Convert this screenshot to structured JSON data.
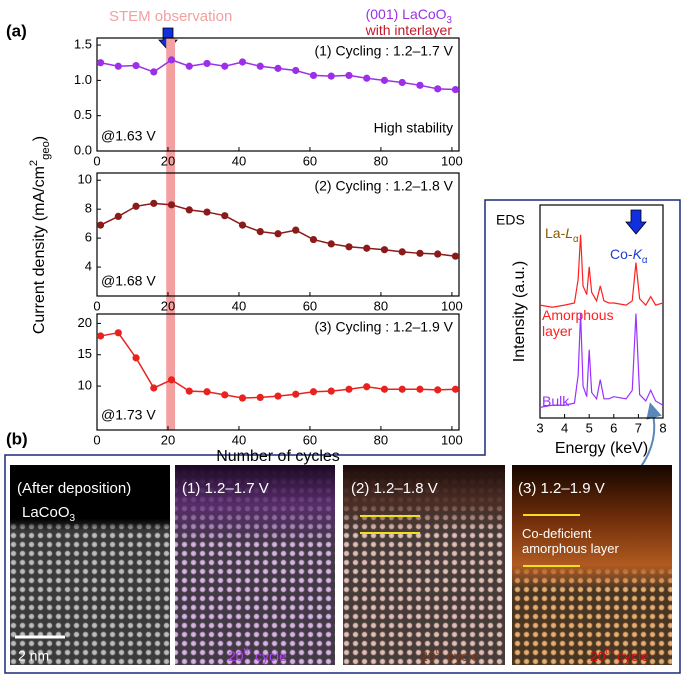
{
  "figure_labels": [
    "(a)",
    "(b)"
  ],
  "chart_data": [
    {
      "type": "line",
      "title": "(1) Cycling : 1.2–1.7 V",
      "note": "@1.63 V",
      "remark": "High stability",
      "annotation": "STEM observation",
      "highlight": [
        19.5,
        22
      ],
      "highlight_color": "#f4a0a0",
      "legend": [
        {
          "parts": [
            {
              "t": "(001) LaCoO"
            },
            {
              "t": "3",
              "pos": "sub"
            }
          ],
          "color": "#9b30e8"
        },
        {
          "parts": [
            {
              "t": "with interlayer"
            }
          ],
          "color": "#c0182a"
        }
      ],
      "y_label": [
        {
          "t": "Current density (mA/cm"
        },
        {
          "t": "2",
          "pos": "sup"
        },
        {
          "t": "geo",
          "pos": "sub"
        },
        {
          "t": ")"
        }
      ],
      "x": [
        1,
        6,
        11,
        16,
        21,
        26,
        31,
        36,
        41,
        46,
        51,
        56,
        61,
        66,
        71,
        76,
        81,
        86,
        91,
        96,
        101
      ],
      "series": [
        {
          "color": "#9b30e8",
          "values": [
            1.25,
            1.2,
            1.21,
            1.12,
            1.29,
            1.2,
            1.24,
            1.2,
            1.26,
            1.2,
            1.17,
            1.14,
            1.07,
            1.06,
            1.07,
            1.03,
            1.0,
            0.97,
            0.93,
            0.88,
            0.87
          ]
        }
      ],
      "xlim": [
        0,
        102
      ],
      "xticks": [
        0,
        20,
        40,
        60,
        80,
        100
      ],
      "ylim": [
        0,
        1.6
      ],
      "yticks": [
        {
          "value": 0,
          "label": "0.0"
        },
        {
          "value": 0.5,
          "label": "0.5"
        },
        {
          "value": 1,
          "label": "1.0"
        },
        {
          "value": 1.5,
          "label": "1.5"
        }
      ],
      "markers": true
    },
    {
      "type": "line",
      "title": "(2) Cycling : 1.2–1.8 V",
      "note": "@1.68 V",
      "x": [
        1,
        6,
        11,
        16,
        21,
        26,
        31,
        36,
        41,
        46,
        51,
        56,
        61,
        66,
        71,
        76,
        81,
        86,
        91,
        96,
        101
      ],
      "series": [
        {
          "color": "#8b1a1a",
          "values": [
            6.9,
            7.5,
            8.2,
            8.4,
            8.3,
            7.95,
            7.8,
            7.55,
            6.9,
            6.45,
            6.3,
            6.55,
            5.9,
            5.6,
            5.4,
            5.3,
            5.2,
            5.05,
            4.95,
            4.9,
            4.75
          ]
        }
      ],
      "xlim": [
        0,
        102
      ],
      "xticks": [
        0,
        20,
        40,
        60,
        80,
        100
      ],
      "ylim": [
        2,
        10.5
      ],
      "yticks": [
        4,
        6,
        8,
        10
      ],
      "markers": true
    },
    {
      "type": "line",
      "title": "(3) Cycling : 1.2–1.9 V",
      "note": "@1.73 V",
      "x_label": "Number of cycles",
      "x": [
        1,
        6,
        11,
        16,
        21,
        26,
        31,
        36,
        41,
        46,
        51,
        56,
        61,
        66,
        71,
        76,
        81,
        86,
        91,
        96,
        101
      ],
      "series": [
        {
          "color": "#e8231f",
          "values": [
            18,
            18.5,
            14.5,
            9.7,
            11,
            9.2,
            9.1,
            8.6,
            8.1,
            8.2,
            8.4,
            8.7,
            9.1,
            9.2,
            9.5,
            9.9,
            9.5,
            9.5,
            9.5,
            9.4,
            9.5
          ]
        }
      ],
      "xlim": [
        0,
        102
      ],
      "xticks": [
        0,
        20,
        40,
        60,
        80,
        100
      ],
      "ylim": [
        3,
        21.5
      ],
      "yticks": [
        10,
        15,
        20
      ],
      "markers": true
    },
    {
      "type": "line",
      "title": "EDS",
      "x_label": "Energy (keV)",
      "y_label": [
        {
          "t": "Intensity (a.u.)"
        }
      ],
      "peaks": [
        {
          "parts": [
            {
              "t": "La-"
            },
            {
              "t": "L",
              "italic": true
            },
            {
              "t": "α",
              "pos": "sub"
            }
          ],
          "color": "#8b5a00"
        },
        {
          "parts": [
            {
              "t": "Co-"
            },
            {
              "t": "K",
              "italic": true
            },
            {
              "t": "α",
              "pos": "sub"
            }
          ],
          "color": "#1f3fd0"
        }
      ],
      "x": [
        3,
        3.5,
        4,
        4.4,
        4.55,
        4.65,
        4.75,
        4.9,
        5.0,
        5.1,
        5.3,
        5.45,
        5.6,
        5.8,
        6.0,
        6.5,
        6.75,
        6.9,
        7.05,
        7.3,
        7.5,
        7.7,
        8.0
      ],
      "series": [
        {
          "name": "Amorphous layer",
          "color": "#ff2020",
          "values": [
            5.3,
            5.2,
            5.3,
            5.4,
            6.5,
            8.6,
            6.2,
            5.8,
            7.1,
            5.9,
            5.5,
            6.2,
            5.5,
            5.4,
            5.4,
            5.3,
            5.5,
            7.3,
            5.6,
            5.3,
            5.7,
            5.3,
            5.4
          ]
        },
        {
          "name": "Bulk",
          "color": "#9b30ff",
          "values": [
            0.5,
            0.6,
            0.6,
            0.7,
            2.0,
            4.9,
            1.5,
            1.0,
            3.2,
            1.2,
            0.9,
            1.8,
            0.9,
            0.9,
            1.0,
            0.9,
            1.3,
            4.9,
            1.1,
            0.8,
            1.3,
            0.8,
            0.6
          ]
        }
      ],
      "xlim": [
        3,
        8
      ],
      "xticks": [
        3,
        4,
        5,
        6,
        7,
        8
      ],
      "ylim": [
        0,
        10
      ],
      "markers": false
    }
  ],
  "micrographs": [
    {
      "label": "(After deposition)",
      "sample": [
        {
          "t": "LaCoO"
        },
        {
          "t": "3"
        }
      ],
      "scale_bar": "2 nm"
    },
    {
      "label": "(1) 1.2–1.7 V",
      "cycle": [
        {
          "t": "20"
        },
        {
          "t": "th"
        },
        {
          "t": " cycle"
        }
      ],
      "color": "#b040f0"
    },
    {
      "label": "(2) 1.2–1.8 V",
      "cycle": [
        {
          "t": "20"
        },
        {
          "t": "th"
        },
        {
          "t": " cycle"
        }
      ],
      "color": "#7a3a1a"
    },
    {
      "label": "(3) 1.2–1.9 V",
      "note": "Co-deficient amorphous layer",
      "cycle": [
        {
          "t": "20"
        },
        {
          "t": "th"
        },
        {
          "t": " cycle"
        }
      ],
      "color": "#d01010"
    }
  ]
}
